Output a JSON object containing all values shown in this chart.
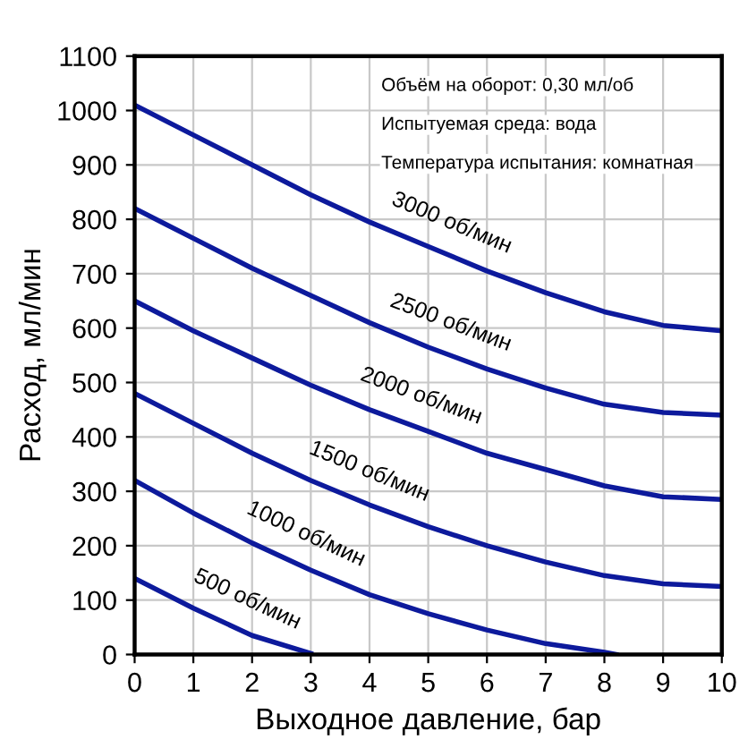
{
  "chart_data": {
    "type": "line",
    "xlabel": "Выходное давление, бар",
    "ylabel": "Расход, мл/мин",
    "x": [
      0,
      1,
      2,
      3,
      4,
      5,
      6,
      7,
      8,
      9,
      10
    ],
    "series": [
      {
        "color": "#0d1a9c",
        "values": [
          1010,
          955,
          900,
          845,
          795,
          750,
          705,
          665,
          630,
          605,
          595
        ]
      },
      {
        "color": "#0d1a9c",
        "values": [
          820,
          765,
          710,
          660,
          610,
          565,
          525,
          490,
          460,
          445,
          440
        ]
      },
      {
        "color": "#0d1a9c",
        "values": [
          650,
          595,
          545,
          495,
          450,
          410,
          370,
          340,
          310,
          290,
          285
        ]
      },
      {
        "color": "#0d1a9c",
        "values": [
          480,
          425,
          370,
          320,
          275,
          235,
          200,
          170,
          145,
          130,
          125
        ]
      },
      {
        "color": "#0d1a9c",
        "x": [
          0,
          1,
          2,
          3,
          4,
          5,
          6,
          7,
          8,
          8.2
        ],
        "values": [
          320,
          260,
          205,
          155,
          110,
          75,
          45,
          20,
          4,
          0
        ]
      },
      {
        "color": "#0d1a9c",
        "x": [
          0,
          1,
          2,
          3
        ],
        "values": [
          140,
          85,
          35,
          2
        ]
      }
    ],
    "xlim": [
      0,
      10
    ],
    "ylim": [
      0,
      1100
    ],
    "xticks": [
      0,
      1,
      2,
      3,
      4,
      5,
      6,
      7,
      8,
      9,
      10
    ],
    "yticks": [
      0,
      100,
      200,
      300,
      400,
      500,
      600,
      700,
      800,
      900,
      1000,
      1100
    ],
    "grid": true,
    "legend": false,
    "marker": "none",
    "line_style": "solid",
    "annotations": [
      "Объём на оборот: 0,30 мл/об",
      "Испытуемая среда: вода",
      "Температура испытания: комнатная",
      {
        "text": "3000 об/мин",
        "x": 5.2,
        "y": 741
      },
      {
        "text": "2500 об/мин",
        "x": 5.2,
        "y": 557
      },
      {
        "text": "2000 об/мин",
        "x": 4.7,
        "y": 422
      },
      {
        "text": "1500 об/мин",
        "x": 3.8,
        "y": 284
      },
      {
        "text": "1000 об/мин",
        "x": 2.7,
        "y": 170
      },
      {
        "text": "500 об/мин",
        "x": 1.7,
        "y": 50
      }
    ]
  }
}
